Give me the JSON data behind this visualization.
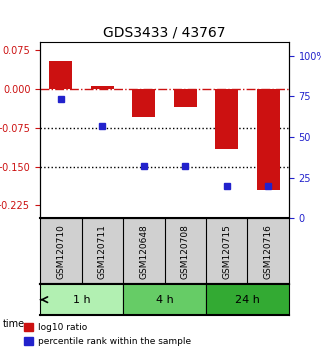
{
  "title": "GDS3433 / 43767",
  "samples": [
    "GSM120710",
    "GSM120711",
    "GSM120648",
    "GSM120708",
    "GSM120715",
    "GSM120716"
  ],
  "time_groups": [
    {
      "label": "1 h",
      "samples": [
        "GSM120710",
        "GSM120711"
      ],
      "color": "#b2f0b2"
    },
    {
      "label": "4 h",
      "samples": [
        "GSM120648",
        "GSM120708"
      ],
      "color": "#66cc66"
    },
    {
      "label": "24 h",
      "samples": [
        "GSM120715",
        "GSM120716"
      ],
      "color": "#33aa33"
    }
  ],
  "log10_ratio": [
    0.055,
    0.005,
    -0.055,
    -0.035,
    -0.115,
    -0.195
  ],
  "percentile_rank": [
    73,
    57,
    32,
    32,
    20,
    20
  ],
  "bar_color": "#cc1111",
  "dot_color": "#2222cc",
  "ylim_left": [
    -0.25,
    0.09
  ],
  "ylim_right": [
    0,
    108
  ],
  "yticks_left": [
    0.075,
    0,
    -0.075,
    -0.15,
    -0.225
  ],
  "yticks_right": [
    100,
    75,
    50,
    25,
    0
  ],
  "hline_y": 0,
  "dotted_lines": [
    -0.075,
    -0.15
  ],
  "legend_labels": [
    "log10 ratio",
    "percentile rank within the sample"
  ],
  "figsize": [
    3.21,
    3.54
  ],
  "dpi": 100
}
